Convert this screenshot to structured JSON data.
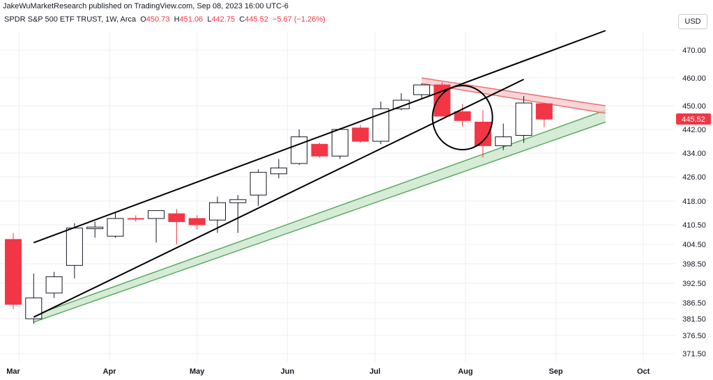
{
  "header": {
    "publisher_line": "JakeWuMarketResearch published on TradingView.com, Sep 08, 2023 16:00 UTC-6",
    "symbol": "SPDR S&P 500 ETF TRUST, 1W, Arca",
    "ohlc": [
      {
        "key": "O",
        "value": "450.73"
      },
      {
        "key": "H",
        "value": "451.06"
      },
      {
        "key": "L",
        "value": "442.75"
      },
      {
        "key": "C",
        "value": "445.52"
      }
    ],
    "change": "−5.67 (−1.26%)",
    "currency_button": "USD"
  },
  "colors": {
    "up_fill": "#ffffff",
    "up_border": "#131722",
    "down": "#f23645",
    "grid": "#eeeff2",
    "green_band": "#5aaa5e",
    "green_fill": "#c8e6c9",
    "red_band": "#e57373",
    "red_fill": "#f8c5c9",
    "last_price": "#f23645"
  },
  "chart_data": {
    "type": "candlestick",
    "title": "SPDR S&P 500 ETF TRUST, 1W, Arca",
    "x_labels": [
      "Mar",
      "Apr",
      "May",
      "Jun",
      "Jul",
      "Aug",
      "Sep",
      "Oct"
    ],
    "y_ticks": [
      371.5,
      376.5,
      381.5,
      386.5,
      392.5,
      398.5,
      404.5,
      410.5,
      418.0,
      426.0,
      434.0,
      442.0,
      450.0,
      460.0,
      470.0
    ],
    "y_tick_labels": [
      "371.50",
      "376.50",
      "381.50",
      "386.50",
      "392.50",
      "398.50",
      "404.50",
      "410.50",
      "418.00",
      "426.00",
      "434.00",
      "442.00",
      "450.00",
      "460.00",
      "470.00"
    ],
    "last_price_label": "445.52",
    "last_price": 445.52,
    "grid": true,
    "candles": [
      {
        "date": "2023-02-27",
        "o": 406.0,
        "h": 408.0,
        "l": 384.5,
        "c": 386.0
      },
      {
        "date": "2023-03-06",
        "o": 381.5,
        "h": 395.5,
        "l": 380.0,
        "c": 388.0
      },
      {
        "date": "2023-03-13",
        "o": 389.5,
        "h": 396.0,
        "l": 388.0,
        "c": 394.5
      },
      {
        "date": "2023-03-20",
        "o": 398.0,
        "h": 411.0,
        "l": 394.0,
        "c": 409.5
      },
      {
        "date": "2023-03-27",
        "o": 409.3,
        "h": 411.5,
        "l": 406.5,
        "c": 409.8
      },
      {
        "date": "2023-04-03",
        "o": 407.0,
        "h": 414.5,
        "l": 406.5,
        "c": 412.5
      },
      {
        "date": "2023-04-10",
        "o": 412.5,
        "h": 413.5,
        "l": 411.5,
        "c": 412.3
      },
      {
        "date": "2023-04-17",
        "o": 412.5,
        "h": 415.0,
        "l": 405.0,
        "c": 415.0
      },
      {
        "date": "2023-04-24",
        "o": 414.0,
        "h": 415.5,
        "l": 404.5,
        "c": 411.5
      },
      {
        "date": "2023-05-01",
        "o": 412.5,
        "h": 413.5,
        "l": 409.0,
        "c": 410.5
      },
      {
        "date": "2023-05-08",
        "o": 412.0,
        "h": 419.5,
        "l": 408.0,
        "c": 417.5
      },
      {
        "date": "2023-05-15",
        "o": 417.5,
        "h": 420.0,
        "l": 408.0,
        "c": 418.5
      },
      {
        "date": "2023-05-22",
        "o": 420.0,
        "h": 428.5,
        "l": 416.5,
        "c": 427.5
      },
      {
        "date": "2023-05-29",
        "o": 427.0,
        "h": 432.0,
        "l": 425.5,
        "c": 429.0
      },
      {
        "date": "2023-06-05",
        "o": 430.5,
        "h": 442.0,
        "l": 430.0,
        "c": 439.5
      },
      {
        "date": "2023-06-12",
        "o": 437.0,
        "h": 437.5,
        "l": 432.5,
        "c": 433.0
      },
      {
        "date": "2023-06-19",
        "o": 433.0,
        "h": 442.5,
        "l": 432.0,
        "c": 442.0
      },
      {
        "date": "2023-06-26",
        "o": 442.5,
        "h": 443.5,
        "l": 437.5,
        "c": 438.0
      },
      {
        "date": "2023-07-03",
        "o": 438.0,
        "h": 451.5,
        "l": 437.0,
        "c": 449.0
      },
      {
        "date": "2023-07-10",
        "o": 449.0,
        "h": 454.5,
        "l": 448.5,
        "c": 452.0
      },
      {
        "date": "2023-07-17",
        "o": 454.0,
        "h": 458.0,
        "l": 452.5,
        "c": 457.5
      },
      {
        "date": "2023-07-24",
        "o": 457.5,
        "h": 458.5,
        "l": 446.5,
        "c": 446.5
      },
      {
        "date": "2023-07-31",
        "o": 448.0,
        "h": 450.5,
        "l": 443.0,
        "c": 445.0
      },
      {
        "date": "2023-08-07",
        "o": 444.5,
        "h": 448.5,
        "l": 432.5,
        "c": 436.5
      },
      {
        "date": "2023-08-14",
        "o": 436.5,
        "h": 444.0,
        "l": 435.0,
        "c": 439.5
      },
      {
        "date": "2023-08-21",
        "o": 440.0,
        "h": 453.5,
        "l": 437.5,
        "c": 451.0
      },
      {
        "date": "2023-08-28",
        "o": 450.73,
        "h": 451.06,
        "l": 442.75,
        "c": 445.52
      }
    ],
    "annotations": [
      {
        "kind": "trend-line",
        "name": "upper-channel-line",
        "from": {
          "date": "2023-03-06",
          "price": 405.0
        },
        "to": {
          "date": "2023-09-18",
          "price": 477.0
        }
      },
      {
        "kind": "trend-line",
        "name": "lower-channel-line",
        "from": {
          "date": "2023-03-06",
          "price": 382.0
        },
        "to": {
          "date": "2023-08-21",
          "price": 459.5
        }
      },
      {
        "kind": "band",
        "name": "green-support-band",
        "color": "green",
        "from": {
          "date": "2023-03-06",
          "lower": 380.5,
          "upper": 382.5
        },
        "to": {
          "date": "2023-09-18",
          "lower": 444.5,
          "upper": 448.5
        }
      },
      {
        "kind": "band",
        "name": "red-resistance-band",
        "color": "red",
        "from": {
          "date": "2023-07-17",
          "lower": 458.0,
          "upper": 460.0
        },
        "to": {
          "date": "2023-09-18",
          "lower": 447.5,
          "upper": 450.0
        }
      },
      {
        "kind": "circle",
        "name": "highlight-circle",
        "center": {
          "date": "2023-07-31",
          "price": 446.0
        }
      }
    ]
  }
}
